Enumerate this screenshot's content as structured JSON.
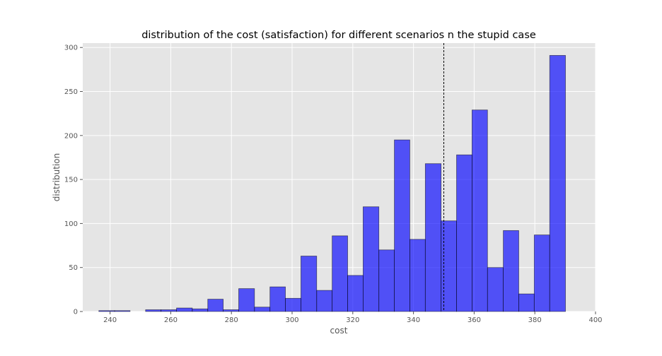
{
  "chart_data": {
    "type": "bar",
    "title": "distribution of the cost (satisfaction) for different scenarios n the stupid case",
    "xlabel": "cost",
    "ylabel": "distribution",
    "xlim": [
      231,
      400
    ],
    "ylim": [
      0,
      305
    ],
    "xticks": [
      240,
      260,
      280,
      300,
      320,
      340,
      360,
      380,
      400
    ],
    "yticks": [
      0,
      50,
      100,
      150,
      200,
      250,
      300
    ],
    "grid": true,
    "bar_color": "#0000ff",
    "bar_edge_color": "#000000",
    "background": "#e5e5e5",
    "vline": 350,
    "bins": [
      {
        "x0": 236.3,
        "x1": 241.5,
        "value": 1
      },
      {
        "x0": 241.5,
        "x1": 246.6,
        "value": 1
      },
      {
        "x0": 251.7,
        "x1": 256.8,
        "value": 2
      },
      {
        "x0": 256.8,
        "x1": 261.9,
        "value": 2
      },
      {
        "x0": 261.9,
        "x1": 267.1,
        "value": 4
      },
      {
        "x0": 267.1,
        "x1": 272.2,
        "value": 3
      },
      {
        "x0": 272.2,
        "x1": 277.3,
        "value": 14
      },
      {
        "x0": 277.3,
        "x1": 282.4,
        "value": 2
      },
      {
        "x0": 282.4,
        "x1": 287.6,
        "value": 26
      },
      {
        "x0": 287.6,
        "x1": 292.7,
        "value": 5
      },
      {
        "x0": 292.7,
        "x1": 297.8,
        "value": 28
      },
      {
        "x0": 297.8,
        "x1": 302.9,
        "value": 15
      },
      {
        "x0": 302.9,
        "x1": 308.1,
        "value": 63
      },
      {
        "x0": 308.1,
        "x1": 313.2,
        "value": 24
      },
      {
        "x0": 313.2,
        "x1": 318.3,
        "value": 86
      },
      {
        "x0": 318.3,
        "x1": 323.4,
        "value": 41
      },
      {
        "x0": 323.4,
        "x1": 328.6,
        "value": 119
      },
      {
        "x0": 328.6,
        "x1": 333.7,
        "value": 70
      },
      {
        "x0": 333.7,
        "x1": 338.8,
        "value": 195
      },
      {
        "x0": 338.8,
        "x1": 343.9,
        "value": 82
      },
      {
        "x0": 343.9,
        "x1": 349.1,
        "value": 168
      },
      {
        "x0": 349.1,
        "x1": 354.2,
        "value": 103
      },
      {
        "x0": 354.2,
        "x1": 359.3,
        "value": 178
      },
      {
        "x0": 359.3,
        "x1": 364.4,
        "value": 229
      },
      {
        "x0": 364.4,
        "x1": 369.6,
        "value": 50
      },
      {
        "x0": 369.6,
        "x1": 374.7,
        "value": 92
      },
      {
        "x0": 374.7,
        "x1": 379.8,
        "value": 20
      },
      {
        "x0": 379.8,
        "x1": 384.9,
        "value": 87
      },
      {
        "x0": 384.9,
        "x1": 390.1,
        "value": 291
      }
    ]
  }
}
